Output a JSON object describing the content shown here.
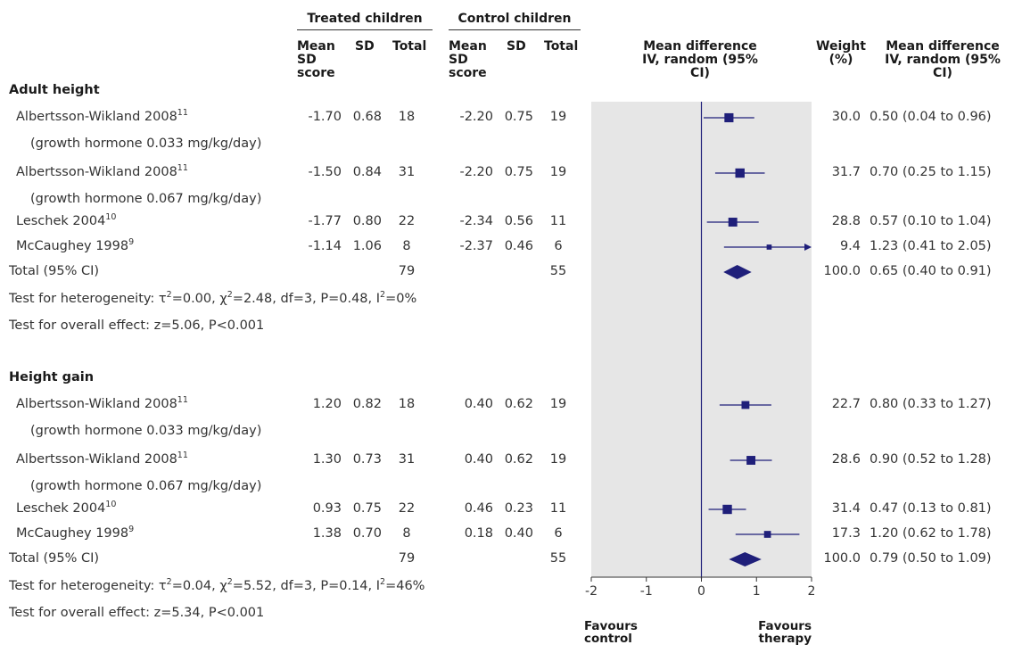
{
  "headers": {
    "treated": "Treated children",
    "control": "Control children",
    "mean_sd_score": "Mean SD score",
    "sd": "SD",
    "total": "Total",
    "forest": "Mean difference IV, random (95% CI)",
    "weight": "Weight (%)",
    "md": "Mean difference IV, random (95% CI)"
  },
  "groups": [
    {
      "title": "Adult height",
      "studies": [
        {
          "name": "Albertsson-Wikland 2008",
          "sup": "11",
          "sub": "(growth hormone 0.033 mg/kg/day)",
          "t_mean": "-1.70",
          "t_sd": "0.68",
          "t_n": "18",
          "c_mean": "-2.20",
          "c_sd": "0.75",
          "c_n": "19",
          "weight": "30.0",
          "md": "0.50 (0.04 to 0.96)"
        },
        {
          "name": "Albertsson-Wikland 2008",
          "sup": "11",
          "sub": "(growth hormone 0.067 mg/kg/day)",
          "t_mean": "-1.50",
          "t_sd": "0.84",
          "t_n": "31",
          "c_mean": "-2.20",
          "c_sd": "0.75",
          "c_n": "19",
          "weight": "31.7",
          "md": "0.70 (0.25 to 1.15)"
        },
        {
          "name": "Leschek 2004",
          "sup": "10",
          "sub": "",
          "t_mean": "-1.77",
          "t_sd": "0.80",
          "t_n": "22",
          "c_mean": "-2.34",
          "c_sd": "0.56",
          "c_n": "11",
          "weight": "28.8",
          "md": "0.57 (0.10 to 1.04)"
        },
        {
          "name": "McCaughey 1998",
          "sup": "9",
          "sub": "",
          "t_mean": "-1.14",
          "t_sd": "1.06",
          "t_n": "8",
          "c_mean": "-2.37",
          "c_sd": "0.46",
          "c_n": "6",
          "weight": "9.4",
          "md": "1.23 (0.41 to 2.05)"
        }
      ],
      "total": {
        "label": "Total (95% CI)",
        "t_n": "79",
        "c_n": "55",
        "weight": "100.0",
        "md": "0.65 (0.40 to 0.91)"
      },
      "heterogeneity": {
        "prefix": "Test for heterogeneity: ",
        "tau": "τ",
        "tau_val": "=0.00, ",
        "chi": "χ",
        "chi_val": "=2.48, df=3, P=0.48, ",
        "i": "I",
        "i_val": "=0%",
        "sq": "2"
      },
      "overall": "Test for overall effect: z=5.06, P<0.001"
    },
    {
      "title": "Height gain",
      "studies": [
        {
          "name": "Albertsson-Wikland 2008",
          "sup": "11",
          "sub": "(growth hormone 0.033 mg/kg/day)",
          "t_mean": "1.20",
          "t_sd": "0.82",
          "t_n": "18",
          "c_mean": "0.40",
          "c_sd": "0.62",
          "c_n": "19",
          "weight": "22.7",
          "md": "0.80 (0.33 to 1.27)"
        },
        {
          "name": "Albertsson-Wikland 2008",
          "sup": "11",
          "sub": "(growth hormone 0.067 mg/kg/day)",
          "t_mean": "1.30",
          "t_sd": "0.73",
          "t_n": "31",
          "c_mean": "0.40",
          "c_sd": "0.62",
          "c_n": "19",
          "weight": "28.6",
          "md": "0.90 (0.52 to 1.28)"
        },
        {
          "name": "Leschek 2004",
          "sup": "10",
          "sub": "",
          "t_mean": "0.93",
          "t_sd": "0.75",
          "t_n": "22",
          "c_mean": "0.46",
          "c_sd": "0.23",
          "c_n": "11",
          "weight": "31.4",
          "md": "0.47 (0.13 to 0.81)"
        },
        {
          "name": "McCaughey 1998",
          "sup": "9",
          "sub": "",
          "t_mean": "1.38",
          "t_sd": "0.70",
          "t_n": "8",
          "c_mean": "0.18",
          "c_sd": "0.40",
          "c_n": "6",
          "weight": "17.3",
          "md": "1.20 (0.62 to 1.78)"
        }
      ],
      "total": {
        "label": "Total (95% CI)",
        "t_n": "79",
        "c_n": "55",
        "weight": "100.0",
        "md": "0.79 (0.50 to 1.09)"
      },
      "heterogeneity": {
        "prefix": "Test for heterogeneity: ",
        "tau": "τ",
        "tau_val": "=0.04, ",
        "chi": "χ",
        "chi_val": "=5.52, df=3, P=0.14, ",
        "i": "I",
        "i_val": "=46%",
        "sq": "2"
      },
      "overall": "Test for overall effect: z=5.34, P<0.001"
    }
  ],
  "axis": {
    "favours_left": "Favours control",
    "favours_right": "Favours therapy"
  },
  "colors": {
    "marker": "#1f1f7a",
    "panel": "#e6e6e6",
    "text": "#333333"
  },
  "chart_data": {
    "type": "forest",
    "xlim": [
      -2,
      2
    ],
    "xticks": [
      "-2",
      "-1",
      "0",
      "1",
      "2"
    ],
    "null_line": 0,
    "groups": [
      {
        "name": "Adult height",
        "studies": [
          {
            "est": 0.5,
            "lo": 0.04,
            "hi": 0.96,
            "weight": 30.0
          },
          {
            "est": 0.7,
            "lo": 0.25,
            "hi": 1.15,
            "weight": 31.7
          },
          {
            "est": 0.57,
            "lo": 0.1,
            "hi": 1.04,
            "weight": 28.8
          },
          {
            "est": 1.23,
            "lo": 0.41,
            "hi": 2.05,
            "weight": 9.4
          }
        ],
        "pooled": {
          "est": 0.65,
          "lo": 0.4,
          "hi": 0.91
        }
      },
      {
        "name": "Height gain",
        "studies": [
          {
            "est": 0.8,
            "lo": 0.33,
            "hi": 1.27,
            "weight": 22.7
          },
          {
            "est": 0.9,
            "lo": 0.52,
            "hi": 1.28,
            "weight": 28.6
          },
          {
            "est": 0.47,
            "lo": 0.13,
            "hi": 0.81,
            "weight": 31.4
          },
          {
            "est": 1.2,
            "lo": 0.62,
            "hi": 1.78,
            "weight": 17.3
          }
        ],
        "pooled": {
          "est": 0.79,
          "lo": 0.5,
          "hi": 1.09
        }
      }
    ]
  }
}
